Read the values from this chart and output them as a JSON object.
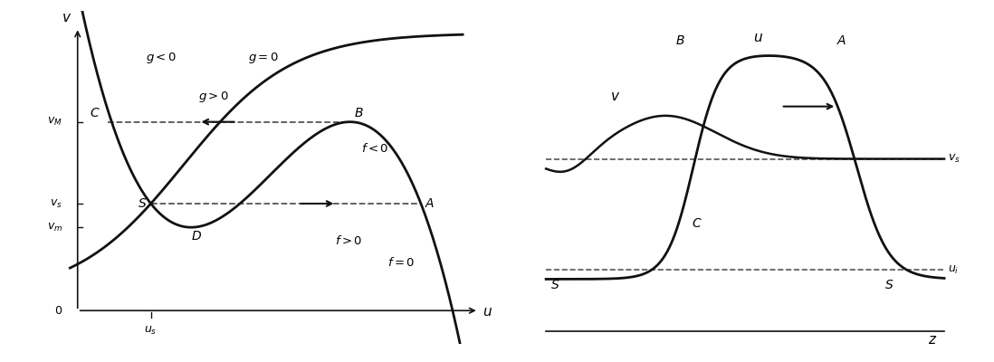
{
  "line_color": "#111111",
  "dashed_color": "#555555",
  "panel_a": {
    "v_M": 0.68,
    "v_s": 0.44,
    "v_m": 0.3,
    "u_s": 0.19
  },
  "panel_b": {
    "v_s_level": 0.58,
    "u_low_level": 0.22
  }
}
